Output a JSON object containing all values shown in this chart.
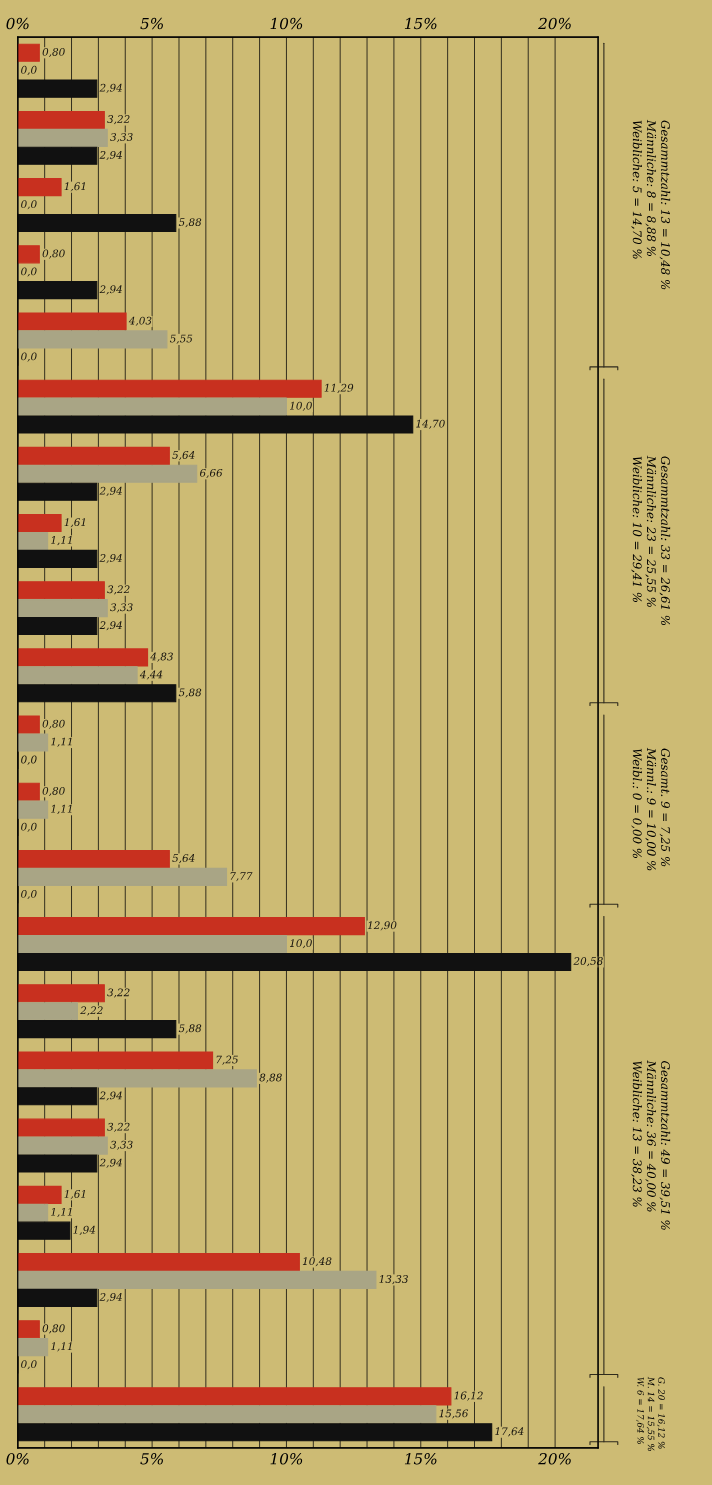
{
  "chart_data": {
    "type": "bar",
    "orientation": "horizontal",
    "categories": [
      null,
      null,
      null,
      null,
      null,
      null,
      null,
      null,
      null,
      null,
      null,
      null,
      null,
      null,
      null,
      null,
      null,
      null,
      null,
      null,
      null
    ],
    "series": [
      {
        "color": "#c8301f",
        "values": [
          0.8,
          3.22,
          1.61,
          0.8,
          4.03,
          11.29,
          5.64,
          1.61,
          3.22,
          4.83,
          0.8,
          0.8,
          5.64,
          12.9,
          3.22,
          7.25,
          3.22,
          1.61,
          10.48,
          0.8,
          16.12
        ],
        "value_labels": [
          "0,80",
          "3,22",
          "1,61",
          "0,80",
          "4,03",
          "11,29",
          "5,64",
          "1,61",
          "3,22",
          "4,83",
          "0,80",
          "0,80",
          "5,64",
          "12,90",
          "3,22",
          "7,25",
          "3,22",
          "1,61",
          "10,48",
          "0,80",
          "16,12"
        ]
      },
      {
        "color": "#a9a585",
        "values": [
          0.0,
          3.33,
          0.0,
          0.0,
          5.55,
          10.0,
          6.66,
          1.11,
          3.33,
          4.44,
          1.11,
          1.11,
          7.77,
          10.0,
          2.22,
          8.88,
          3.33,
          1.11,
          13.33,
          1.11,
          15.56
        ],
        "value_labels": [
          "0,0",
          "3,33",
          "0,0",
          "0,0",
          "5,55",
          "10,0",
          "6,66",
          "1,11",
          "3,33",
          "4,44",
          "1,11",
          "1,11",
          "7,77",
          "10,0",
          "2,22",
          "8,88",
          "3,33",
          "1,11",
          "13,33",
          "1,11",
          "15,56"
        ]
      },
      {
        "color": "#111111",
        "values": [
          2.94,
          2.94,
          5.88,
          2.94,
          0.0,
          14.7,
          2.94,
          2.94,
          2.94,
          5.88,
          0.0,
          0.0,
          0.0,
          20.58,
          5.88,
          2.94,
          2.94,
          1.94,
          2.94,
          0.0,
          17.64
        ],
        "value_labels": [
          "2,94",
          "2,94",
          "5,88",
          "2,94",
          "0,0",
          "14,70",
          "2,94",
          "2,94",
          "2,94",
          "5,88",
          "0,0",
          "0,0",
          "0,0",
          "20,58",
          "5,88",
          "2,94",
          "2,94",
          "1,94",
          "2,94",
          "0,0",
          "17,64"
        ]
      }
    ],
    "xlim": [
      0,
      21.6
    ],
    "xticks": [
      {
        "value": 0,
        "label": "0%"
      },
      {
        "value": 1,
        "label": null
      },
      {
        "value": 2,
        "label": null
      },
      {
        "value": 3,
        "label": null
      },
      {
        "value": 4,
        "label": null
      },
      {
        "value": 5,
        "label": "5%"
      },
      {
        "value": 6,
        "label": null
      },
      {
        "value": 7,
        "label": null
      },
      {
        "value": 8,
        "label": null
      },
      {
        "value": 9,
        "label": null
      },
      {
        "value": 10,
        "label": "10%"
      },
      {
        "value": 11,
        "label": null
      },
      {
        "value": 12,
        "label": null
      },
      {
        "value": 13,
        "label": null
      },
      {
        "value": 14,
        "label": null
      },
      {
        "value": 15,
        "label": "15%"
      },
      {
        "value": 16,
        "label": null
      },
      {
        "value": 17,
        "label": null
      },
      {
        "value": 18,
        "label": null
      },
      {
        "value": 19,
        "label": null
      },
      {
        "value": 20,
        "label": "20%"
      }
    ],
    "x2lim": [
      0,
      21.6
    ],
    "x2ticks": [
      {
        "value": 0,
        "label": "0%"
      },
      {
        "value": 5,
        "label": "5%"
      },
      {
        "value": 10,
        "label": "10%"
      },
      {
        "value": 15,
        "label": "15%"
      },
      {
        "value": 20,
        "label": "20%"
      }
    ],
    "grid": "x",
    "legend": false,
    "annotations": [
      "Gesammtzahl: 13 = 10,48 %\nMännliche: 8 = 8,88 %\nWeibliche: 5 = 14,70 %",
      "Gesammtzahl: 33 = 26,61 %\nMännliche: 23 = 25,55 %\nWeibliche: 10 = 29,41 %",
      "Gesamt. 9 = 7,25 %\nMännl.: 9 = 10,00 %\nWeibl.: 0 = 0,00 %",
      "Gesammtzahl: 49 = 39,51 %\nMännliche: 36 = 40,00 %\nWeibliche: 13 = 38,23 %",
      "G. 20 = 16,12 %\nM. 14 = 15,55 %\nW. 6 = 17,64 %"
    ]
  }
}
